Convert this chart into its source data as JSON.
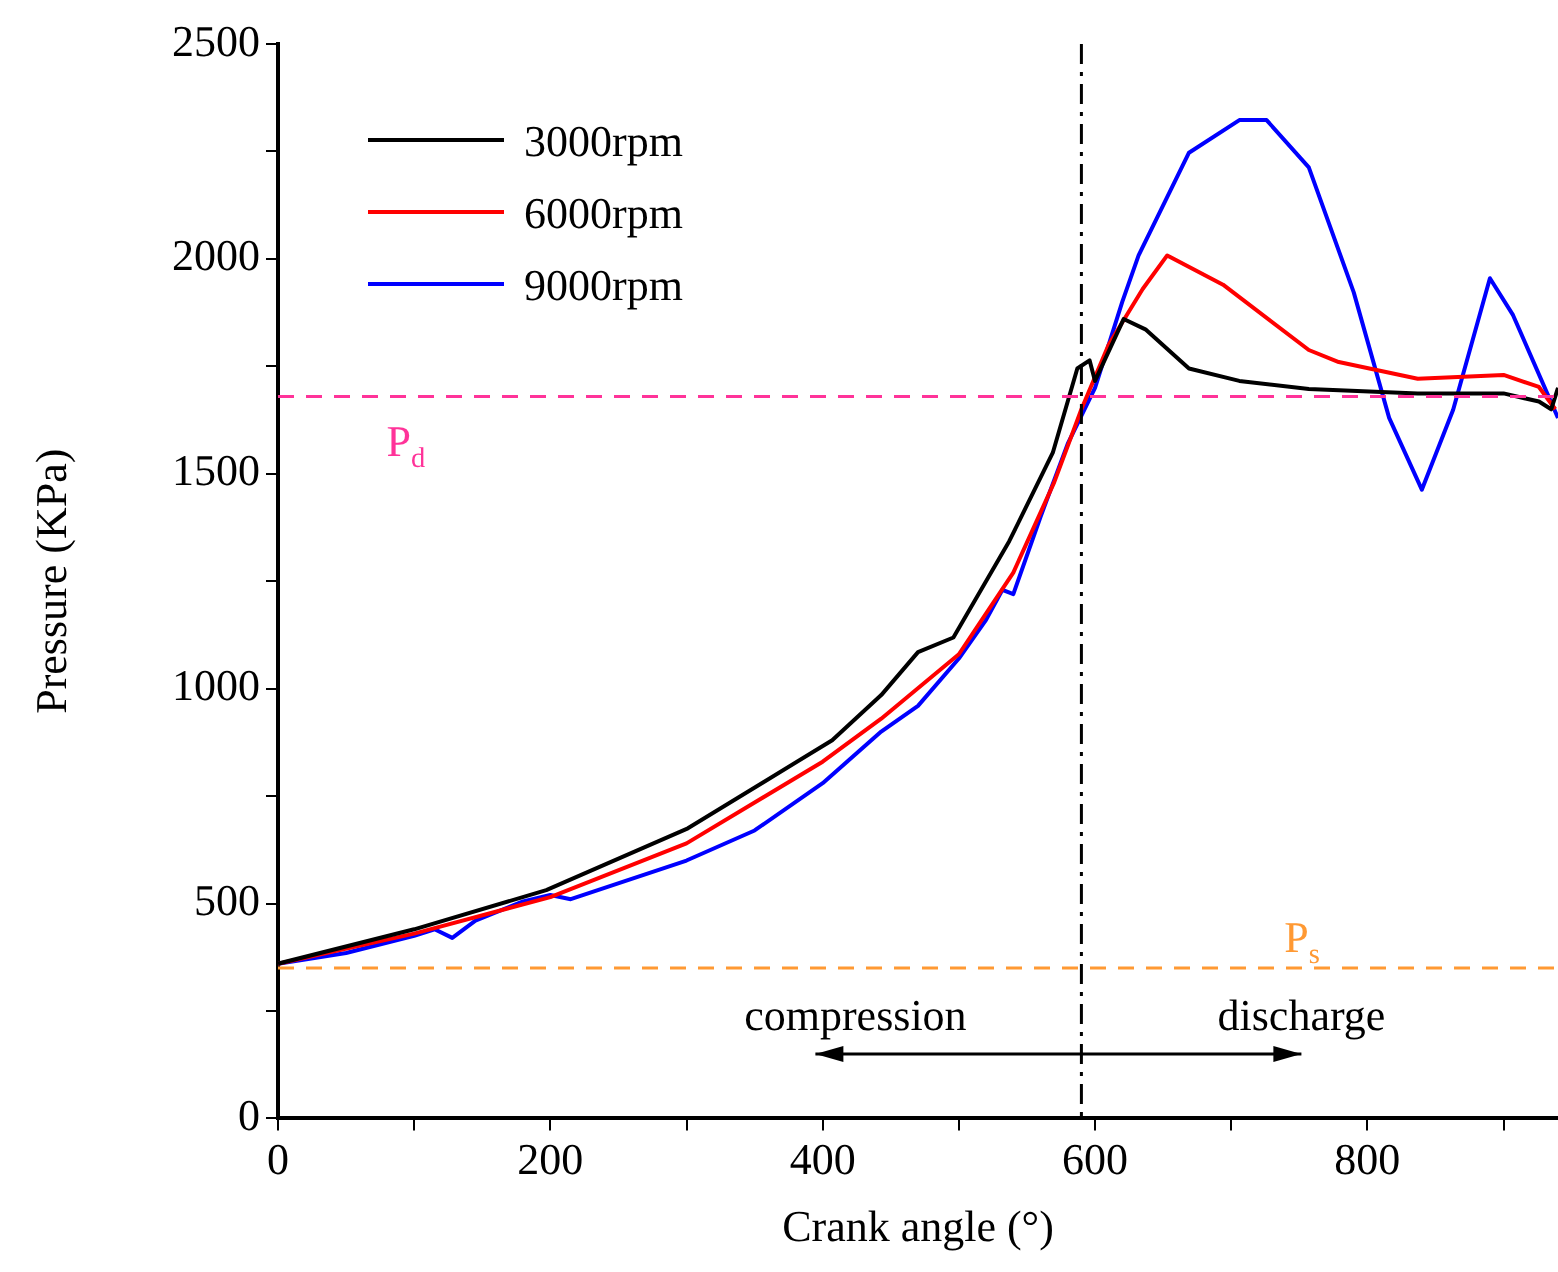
{
  "chart_data": {
    "type": "line",
    "xlabel": "Crank angle (°)",
    "ylabel": "Pressure (KPa)",
    "xlim": [
      0,
      940
    ],
    "ylim": [
      0,
      2500
    ],
    "xticks": [
      0,
      {
        "value": 100,
        "label": null
      },
      200,
      {
        "value": 300,
        "label": null
      },
      400,
      {
        "value": 500,
        "label": null
      },
      600,
      {
        "value": 700,
        "label": null
      },
      800,
      {
        "value": 900,
        "label": null
      }
    ],
    "yticks": [
      0,
      {
        "value": 250,
        "label": null
      },
      500,
      {
        "value": 750,
        "label": null
      },
      1000,
      {
        "value": 1250,
        "label": null
      },
      1500,
      {
        "value": 1750,
        "label": null
      },
      2000,
      {
        "value": 2250,
        "label": null
      },
      2500
    ],
    "legend": "top left",
    "grid": false,
    "marker": "none",
    "line_style": "solid",
    "series": [
      {
        "name": "3000rpm",
        "color": "#000000",
        "x": [
          0,
          100,
          197,
          301,
          407,
          443,
          470,
          496,
          537,
          569,
          587,
          596,
          600,
          621,
          637,
          669,
          706,
          757,
          837,
          900,
          926,
          935,
          940
        ],
        "values": [
          360,
          440,
          531,
          675,
          880,
          985,
          1085,
          1119,
          1343,
          1549,
          1745,
          1764,
          1716,
          1860,
          1836,
          1745,
          1716,
          1697,
          1687,
          1687,
          1668,
          1650,
          1700
        ]
      },
      {
        "name": "6000rpm",
        "color": "#ff0000",
        "x": [
          0,
          100,
          200,
          300,
          400,
          443,
          500,
          540,
          570,
          590,
          610,
          635,
          653,
          694,
          757,
          779,
          837,
          900,
          926,
          938
        ],
        "values": [
          360,
          430,
          515,
          640,
          830,
          930,
          1080,
          1270,
          1480,
          1650,
          1800,
          1930,
          2008,
          1940,
          1788,
          1760,
          1721,
          1730,
          1702,
          1650
        ]
      },
      {
        "name": "9000rpm",
        "color": "#0000ff",
        "x": [
          0,
          50,
          100,
          115,
          128,
          145,
          180,
          200,
          215,
          300,
          350,
          400,
          443,
          470,
          500,
          520,
          532,
          540,
          560,
          580,
          600,
          620,
          632,
          669,
          706,
          726,
          757,
          790,
          816,
          840,
          863,
          890,
          907,
          940
        ],
        "values": [
          360,
          385,
          425,
          440,
          420,
          460,
          505,
          520,
          510,
          600,
          670,
          780,
          900,
          960,
          1070,
          1160,
          1230,
          1220,
          1400,
          1570,
          1700,
          1900,
          2008,
          2247,
          2323,
          2323,
          2213,
          1922,
          1630,
          1463,
          1649,
          1955,
          1869,
          1630
        ]
      }
    ],
    "ref_lines": [
      {
        "axis": "y",
        "value": 1680,
        "label": "P$_{d}$",
        "color": "#ff3399",
        "line_style": "dashed"
      },
      {
        "axis": "y",
        "value": 350,
        "label": "P$_{s}$",
        "color": "#ff9933",
        "line_style": "dashed"
      },
      {
        "axis": "x",
        "value": 590,
        "color": "#000000",
        "line_style": "dashdot"
      }
    ],
    "annotations": [
      "compression",
      "discharge"
    ]
  }
}
